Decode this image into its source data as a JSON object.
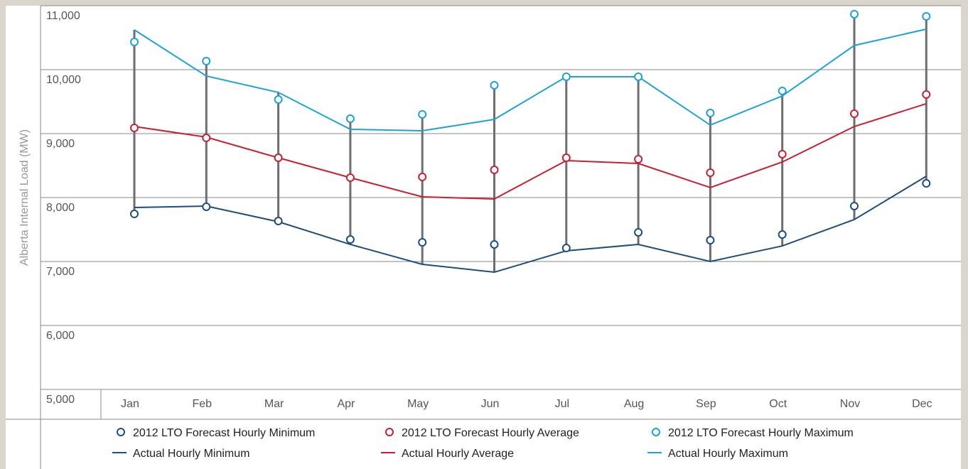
{
  "chart_data": {
    "type": "line",
    "y_label": "Alberta Internal Load (MW)",
    "categories": [
      "Jan",
      "Feb",
      "Mar",
      "Apr",
      "May",
      "Jun",
      "Jul",
      "Aug",
      "Sep",
      "Oct",
      "Nov",
      "Dec"
    ],
    "ylim": [
      5000,
      11000
    ],
    "yticks": [
      {
        "value": 5000,
        "label": "5,000"
      },
      {
        "value": 6000,
        "label": "6,000"
      },
      {
        "value": 7000,
        "label": "7,000"
      },
      {
        "value": 8000,
        "label": "8,000"
      },
      {
        "value": 9000,
        "label": "9,000"
      },
      {
        "value": 10000,
        "label": "10,000"
      },
      {
        "value": 11000,
        "label": "11,000"
      }
    ],
    "grid": true,
    "range_color": "#6d6e71",
    "series": [
      {
        "name": "2012 LTO Forecast Hourly Minimum",
        "kind": "marker",
        "color": "#1d4e7e",
        "values": [
          7744,
          7856,
          7633,
          7344,
          7300,
          7267,
          7211,
          7456,
          7333,
          7422,
          7867,
          8222
        ]
      },
      {
        "name": "2012 LTO Forecast Hourly Average",
        "kind": "marker",
        "color": "#c8202f",
        "values": [
          9089,
          8933,
          8622,
          8311,
          8322,
          8433,
          8622,
          8600,
          8389,
          8678,
          9311,
          9611
        ]
      },
      {
        "name": "2012 LTO Forecast Hourly Maximum",
        "kind": "marker",
        "color": "#1ba3d6",
        "values": [
          10433,
          10133,
          9533,
          9233,
          9300,
          9756,
          9889,
          9889,
          9322,
          9667,
          10867,
          10833
        ]
      },
      {
        "name": "Actual Hourly Minimum",
        "kind": "line",
        "color": "#1d4e7e",
        "values": [
          7844,
          7867,
          7622,
          7267,
          6956,
          6833,
          7167,
          7267,
          7000,
          7244,
          7656,
          8333
        ]
      },
      {
        "name": "Actual Hourly Average",
        "kind": "line",
        "color": "#c8202f",
        "values": [
          9111,
          8944,
          8622,
          8311,
          8011,
          7978,
          8578,
          8533,
          8156,
          8556,
          9111,
          9467
        ]
      },
      {
        "name": "Actual Hourly Maximum",
        "kind": "line",
        "color": "#1ba3d6",
        "values": [
          10622,
          9900,
          9644,
          9067,
          9044,
          9222,
          9889,
          9889,
          9133,
          9589,
          10378,
          10633
        ]
      }
    ]
  }
}
